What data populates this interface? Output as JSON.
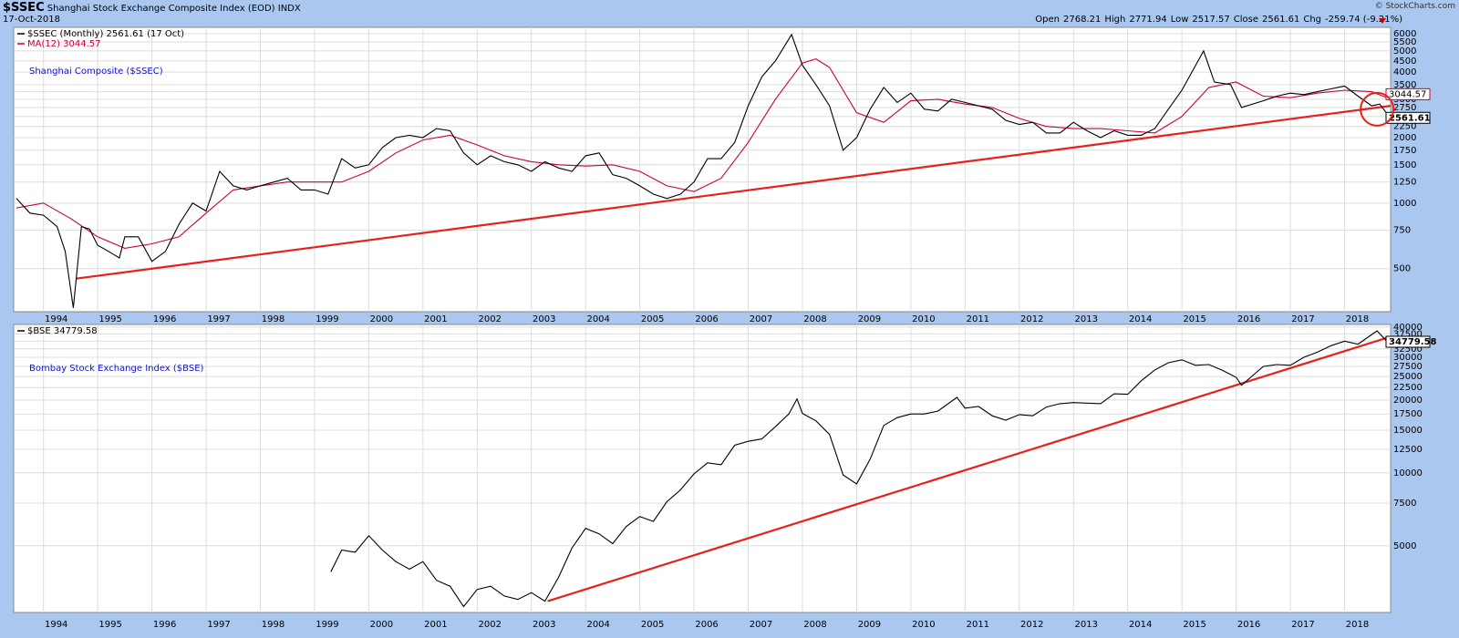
{
  "header": {
    "symbol": "$SSEC",
    "name": "Shanghai Stock Exchange Composite Index (EOD)",
    "exchange": "INDX",
    "date": "17-Oct-2018",
    "quote": [
      {
        "label": "Open",
        "value": "2768.21"
      },
      {
        "label": "High",
        "value": "2771.94"
      },
      {
        "label": "Low",
        "value": "2517.57"
      },
      {
        "label": "Close",
        "value": "2561.61"
      },
      {
        "label": "Chg",
        "value": "-259.74 (-9.21%)"
      }
    ],
    "credit": "© StockCharts.com"
  },
  "chart_data": [
    {
      "type": "line",
      "log_scale": true,
      "grid": true,
      "annotation": "Shanghai Composite ($SSEC)",
      "xlim": [
        1993.45,
        2018.85
      ],
      "xticks": [
        1994,
        1995,
        1996,
        1997,
        1998,
        1999,
        2000,
        2001,
        2002,
        2003,
        2004,
        2005,
        2006,
        2007,
        2008,
        2009,
        2010,
        2011,
        2012,
        2013,
        2014,
        2015,
        2016,
        2017,
        2018
      ],
      "ylim": [
        317,
        6420
      ],
      "yticks": [
        500,
        750,
        1000,
        1250,
        1500,
        1750,
        2000,
        2250,
        2500,
        2750,
        3000,
        3250,
        3500,
        4000,
        4500,
        5000,
        5500,
        6000
      ],
      "series": [
        {
          "name": "$SSEC (Monthly) 2561.61 (17 Oct)",
          "color": "#000000",
          "x": [
            1993.5,
            1993.75,
            1994.0,
            1994.25,
            1994.4,
            1994.55,
            1994.7,
            1994.85,
            1995.0,
            1995.2,
            1995.4,
            1995.5,
            1995.75,
            1996.0,
            1996.25,
            1996.5,
            1996.75,
            1997.0,
            1997.25,
            1997.5,
            1997.75,
            1998.0,
            1998.25,
            1998.5,
            1998.75,
            1999.0,
            1999.25,
            1999.5,
            1999.75,
            2000.0,
            2000.25,
            2000.5,
            2000.75,
            2001.0,
            2001.25,
            2001.5,
            2001.75,
            2002.0,
            2002.25,
            2002.5,
            2002.75,
            2003.0,
            2003.25,
            2003.5,
            2003.75,
            2004.0,
            2004.25,
            2004.5,
            2004.75,
            2005.0,
            2005.25,
            2005.5,
            2005.75,
            2006.0,
            2006.25,
            2006.5,
            2006.75,
            2007.0,
            2007.25,
            2007.5,
            2007.8,
            2008.0,
            2008.25,
            2008.5,
            2008.75,
            2009.0,
            2009.25,
            2009.5,
            2009.75,
            2010.0,
            2010.25,
            2010.5,
            2010.75,
            2011.0,
            2011.25,
            2011.5,
            2011.75,
            2012.0,
            2012.25,
            2012.5,
            2012.75,
            2013.0,
            2013.25,
            2013.5,
            2013.75,
            2014.0,
            2014.25,
            2014.5,
            2014.75,
            2015.0,
            2015.4,
            2015.6,
            2015.9,
            2016.1,
            2016.5,
            2016.75,
            2017.0,
            2017.25,
            2017.5,
            2017.75,
            2018.0,
            2018.25,
            2018.5,
            2018.65,
            2018.79
          ],
          "values": [
            1050,
            900,
            880,
            780,
            600,
            330,
            780,
            760,
            640,
            600,
            560,
            700,
            700,
            540,
            600,
            800,
            1000,
            920,
            1400,
            1200,
            1150,
            1200,
            1250,
            1300,
            1150,
            1150,
            1100,
            1600,
            1450,
            1500,
            1800,
            2000,
            2050,
            2000,
            2200,
            2150,
            1700,
            1500,
            1650,
            1550,
            1500,
            1400,
            1550,
            1450,
            1400,
            1650,
            1700,
            1350,
            1300,
            1200,
            1100,
            1050,
            1100,
            1250,
            1600,
            1600,
            1900,
            2800,
            3800,
            4500,
            5950,
            4300,
            3500,
            2800,
            1750,
            2000,
            2700,
            3400,
            2900,
            3200,
            2700,
            2650,
            3000,
            2900,
            2800,
            2700,
            2400,
            2300,
            2350,
            2100,
            2100,
            2350,
            2150,
            2000,
            2150,
            2050,
            2050,
            2200,
            2700,
            3300,
            5000,
            3600,
            3500,
            2750,
            2950,
            3100,
            3200,
            3150,
            3250,
            3350,
            3450,
            3100,
            2800,
            2850,
            2561.61
          ]
        },
        {
          "name": "MA(12) 3044.57",
          "color": "#cc0033",
          "x": [
            1993.5,
            1994.0,
            1994.5,
            1995.0,
            1995.5,
            1996.0,
            1996.5,
            1997.0,
            1997.5,
            1998.0,
            1998.5,
            1999.0,
            1999.5,
            2000.0,
            2000.5,
            2001.0,
            2001.5,
            2002.0,
            2002.5,
            2003.0,
            2003.5,
            2004.0,
            2004.5,
            2005.0,
            2005.5,
            2006.0,
            2006.5,
            2007.0,
            2007.5,
            2008.0,
            2008.25,
            2008.5,
            2009.0,
            2009.5,
            2010.0,
            2010.5,
            2011.0,
            2011.5,
            2012.0,
            2012.5,
            2013.0,
            2013.5,
            2014.0,
            2014.5,
            2015.0,
            2015.5,
            2016.0,
            2016.5,
            2017.0,
            2017.5,
            2018.0,
            2018.5,
            2018.79
          ],
          "values": [
            950,
            1000,
            850,
            700,
            620,
            650,
            700,
            900,
            1150,
            1200,
            1250,
            1250,
            1250,
            1400,
            1700,
            1950,
            2050,
            1850,
            1650,
            1550,
            1500,
            1480,
            1500,
            1400,
            1200,
            1130,
            1300,
            1900,
            3000,
            4400,
            4600,
            4200,
            2600,
            2350,
            2950,
            3000,
            2850,
            2750,
            2450,
            2250,
            2200,
            2200,
            2150,
            2100,
            2500,
            3400,
            3600,
            3100,
            3050,
            3200,
            3300,
            3250,
            3044.57
          ]
        }
      ],
      "trendlines": [
        {
          "color": "#e8201c",
          "x": [
            1994.6,
            2018.85
          ],
          "values": [
            450,
            2800
          ]
        }
      ]
    },
    {
      "type": "line",
      "log_scale": true,
      "grid": true,
      "annotation": "Bombay Stock Exchange Index ($BSE)",
      "xlim": [
        1993.45,
        2018.85
      ],
      "xticks": [
        1994,
        1995,
        1996,
        1997,
        1998,
        1999,
        2000,
        2001,
        2002,
        2003,
        2004,
        2005,
        2006,
        2007,
        2008,
        2009,
        2010,
        2011,
        2012,
        2013,
        2014,
        2015,
        2016,
        2017,
        2018
      ],
      "ylim": [
        2650,
        41000
      ],
      "yticks": [
        5000,
        7500,
        10000,
        12500,
        15000,
        17500,
        20000,
        22500,
        25000,
        27500,
        30000,
        32500,
        35000,
        37500,
        40000
      ],
      "series": [
        {
          "name": "$BSE 34779.58",
          "color": "#000000",
          "x": [
            1999.3,
            1999.5,
            1999.75,
            2000.0,
            2000.25,
            2000.5,
            2000.75,
            2001.0,
            2001.25,
            2001.5,
            2001.75,
            2002.0,
            2002.25,
            2002.5,
            2002.75,
            2003.0,
            2003.25,
            2003.5,
            2003.75,
            2004.0,
            2004.25,
            2004.5,
            2004.75,
            2005.0,
            2005.25,
            2005.5,
            2005.75,
            2006.0,
            2006.25,
            2006.5,
            2006.75,
            2007.0,
            2007.25,
            2007.5,
            2007.75,
            2007.9,
            2008.0,
            2008.25,
            2008.5,
            2008.75,
            2009.0,
            2009.25,
            2009.5,
            2009.75,
            2010.0,
            2010.25,
            2010.5,
            2010.85,
            2011.0,
            2011.25,
            2011.5,
            2011.75,
            2012.0,
            2012.25,
            2012.5,
            2012.75,
            2013.0,
            2013.25,
            2013.5,
            2013.75,
            2014.0,
            2014.25,
            2014.5,
            2014.75,
            2015.0,
            2015.25,
            2015.5,
            2015.75,
            2016.0,
            2016.1,
            2016.5,
            2016.75,
            2017.0,
            2017.25,
            2017.5,
            2017.75,
            2018.0,
            2018.25,
            2018.6,
            2018.79
          ],
          "values": [
            3900,
            4800,
            4700,
            5500,
            4800,
            4300,
            4000,
            4300,
            3600,
            3400,
            2800,
            3300,
            3400,
            3100,
            3000,
            3200,
            2950,
            3700,
            4900,
            5900,
            5600,
            5100,
            6000,
            6600,
            6300,
            7600,
            8500,
            9900,
            11000,
            10800,
            13000,
            13500,
            13800,
            15500,
            17500,
            20200,
            17600,
            16400,
            14400,
            9800,
            9000,
            11400,
            15700,
            16900,
            17500,
            17500,
            18000,
            20500,
            18500,
            18800,
            17200,
            16500,
            17400,
            17200,
            18700,
            19300,
            19500,
            19400,
            19300,
            21200,
            21100,
            24000,
            26600,
            28500,
            29300,
            27800,
            28000,
            26500,
            24800,
            23000,
            27500,
            28000,
            27800,
            30000,
            31500,
            33500,
            35000,
            34000,
            38600,
            34779.58
          ]
        }
      ],
      "trendlines": [
        {
          "color": "#e8201c",
          "x": [
            2003.3,
            2018.85
          ],
          "values": [
            2950,
            36500
          ]
        }
      ]
    }
  ]
}
